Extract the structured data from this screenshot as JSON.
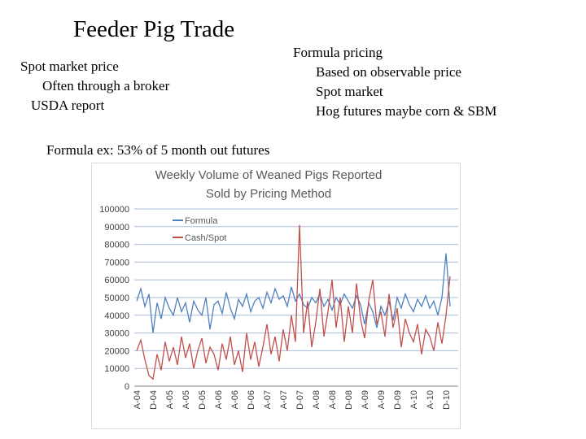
{
  "slide": {
    "title": "Feeder Pig Trade",
    "left_bullets": [
      "Spot market price",
      "Often through a broker",
      "USDA report"
    ],
    "right_bullets": [
      "Formula pricing",
      "Based on observable price",
      "Spot market",
      "Hog futures maybe corn & SBM"
    ],
    "example": "Formula ex: 53% of 5 month out futures"
  },
  "chart_data": {
    "type": "line",
    "title": [
      "Weekly Volume of Weaned Pigs Reported",
      "Sold by Pricing Method"
    ],
    "categories": [
      "A-04",
      null,
      null,
      null,
      "D-04",
      null,
      null,
      null,
      "A-05",
      null,
      null,
      null,
      "A-05",
      null,
      null,
      null,
      "D-05",
      null,
      null,
      null,
      "A-06",
      null,
      null,
      null,
      "A-06",
      null,
      null,
      null,
      "D-06",
      null,
      null,
      null,
      "A-07",
      null,
      null,
      null,
      "A-07",
      null,
      null,
      null,
      "D-07",
      null,
      null,
      null,
      "A-08",
      null,
      null,
      null,
      "A-08",
      null,
      null,
      null,
      "D-08",
      null,
      null,
      null,
      "A-09",
      null,
      null,
      null,
      "A-09",
      null,
      null,
      null,
      "D-09",
      null,
      null,
      null,
      "A-10",
      null,
      null,
      null,
      "A-10",
      null,
      null,
      null,
      "D-10",
      null
    ],
    "series": [
      {
        "name": "Formula",
        "color": "#4f81bd",
        "values": [
          48000,
          55000,
          45000,
          52000,
          30000,
          47000,
          38000,
          50000,
          44000,
          40000,
          50000,
          42000,
          47000,
          36000,
          48000,
          43000,
          40000,
          50000,
          32000,
          46000,
          48000,
          41000,
          53000,
          44000,
          38000,
          49000,
          45000,
          52000,
          42000,
          48000,
          50000,
          44000,
          53000,
          47000,
          55000,
          49000,
          51000,
          45000,
          56000,
          48000,
          52000,
          46000,
          44000,
          50000,
          47000,
          52000,
          45000,
          49000,
          43000,
          50000,
          46000,
          52000,
          48000,
          44000,
          51000,
          46000,
          35000,
          47000,
          42000,
          33000,
          45000,
          40000,
          48000,
          37000,
          50000,
          44000,
          52000,
          46000,
          42000,
          49000,
          45000,
          51000,
          44000,
          48000,
          40000,
          50000,
          75000,
          45000
        ]
      },
      {
        "name": "Cash/Spot",
        "color": "#c0504d",
        "values": [
          20000,
          26000,
          15000,
          6000,
          4000,
          18000,
          9000,
          25000,
          14000,
          22000,
          12000,
          28000,
          16000,
          24000,
          10000,
          20000,
          27000,
          13000,
          22000,
          18000,
          9000,
          24000,
          15000,
          28000,
          12000,
          20000,
          8000,
          30000,
          15000,
          25000,
          11000,
          22000,
          35000,
          18000,
          28000,
          14000,
          32000,
          20000,
          40000,
          25000,
          91000,
          30000,
          48000,
          22000,
          36000,
          55000,
          28000,
          42000,
          60000,
          33000,
          50000,
          25000,
          45000,
          30000,
          58000,
          38000,
          27000,
          48000,
          60000,
          35000,
          42000,
          28000,
          52000,
          33000,
          44000,
          22000,
          38000,
          30000,
          25000,
          35000,
          18000,
          32000,
          28000,
          20000,
          36000,
          24000,
          40000,
          62000
        ]
      }
    ],
    "ylim": [
      0,
      100000
    ],
    "yticks": [
      0,
      10000,
      20000,
      30000,
      40000,
      50000,
      60000,
      70000,
      80000,
      90000,
      100000
    ],
    "grid": true
  }
}
